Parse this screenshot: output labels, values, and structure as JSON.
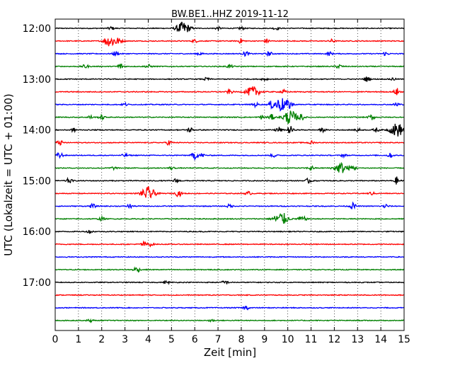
{
  "chart_data": {
    "type": "line",
    "title": "BW.BE1..HHZ 2019-11-12",
    "xlabel": "Zeit  [min]",
    "ylabel": "UTC (Lokalzeit = UTC + 01:00)",
    "xlim": [
      0,
      15
    ],
    "x_ticks": [
      "0",
      "1",
      "2",
      "3",
      "4",
      "5",
      "6",
      "7",
      "8",
      "9",
      "10",
      "11",
      "12",
      "13",
      "14",
      "15"
    ],
    "y_tick_labels": [
      "12:00",
      "13:00",
      "14:00",
      "15:00",
      "16:00",
      "17:00"
    ],
    "grid": "vertical dotted",
    "trace_colors": [
      "#000000",
      "#ff0000",
      "#0000ff",
      "#008000"
    ],
    "series": [
      {
        "start": "12:00",
        "events": [
          [
            2.4,
            0.25
          ],
          [
            5.5,
            0.9
          ],
          [
            7.0,
            0.2
          ],
          [
            8.0,
            0.2
          ],
          [
            9.5,
            0.2
          ]
        ]
      },
      {
        "start": "12:15",
        "events": [
          [
            2.2,
            0.45
          ],
          [
            2.5,
            0.8
          ],
          [
            6.0,
            0.2
          ],
          [
            8.0,
            0.35
          ],
          [
            9.1,
            0.3
          ],
          [
            11.9,
            0.25
          ]
        ]
      },
      {
        "start": "12:30",
        "events": [
          [
            2.6,
            0.3
          ],
          [
            6.2,
            0.2
          ],
          [
            8.2,
            0.35
          ],
          [
            9.2,
            0.3
          ],
          [
            11.8,
            0.25
          ],
          [
            14.2,
            0.25
          ]
        ]
      },
      {
        "start": "12:45",
        "events": [
          [
            1.3,
            0.3
          ],
          [
            2.8,
            0.45
          ],
          [
            4.0,
            0.25
          ],
          [
            7.5,
            0.25
          ],
          [
            12.2,
            0.3
          ]
        ]
      },
      {
        "start": "13:00",
        "events": [
          [
            6.5,
            0.2
          ],
          [
            9.0,
            0.2
          ],
          [
            13.4,
            0.35
          ],
          [
            14.5,
            0.2
          ]
        ]
      },
      {
        "start": "13:15",
        "events": [
          [
            7.5,
            0.3
          ],
          [
            8.5,
            0.75
          ],
          [
            9.8,
            0.3
          ],
          [
            14.7,
            0.5
          ]
        ]
      },
      {
        "start": "13:30",
        "events": [
          [
            3.0,
            0.2
          ],
          [
            8.6,
            0.3
          ],
          [
            9.3,
            0.4
          ],
          [
            9.7,
            1.0
          ],
          [
            10.1,
            0.5
          ],
          [
            14.7,
            0.35
          ]
        ]
      },
      {
        "start": "13:45",
        "events": [
          [
            1.5,
            0.25
          ],
          [
            2.0,
            0.3
          ],
          [
            8.9,
            0.3
          ],
          [
            9.3,
            0.4
          ],
          [
            10.1,
            1.0
          ],
          [
            10.6,
            0.4
          ],
          [
            13.6,
            0.4
          ]
        ]
      },
      {
        "start": "14:00",
        "events": [
          [
            0.8,
            0.25
          ],
          [
            5.8,
            0.35
          ],
          [
            9.6,
            0.45
          ],
          [
            10.1,
            0.55
          ],
          [
            11.5,
            0.25
          ],
          [
            13.0,
            0.25
          ],
          [
            13.8,
            0.3
          ],
          [
            14.7,
            1.0
          ]
        ]
      },
      {
        "start": "14:15",
        "events": [
          [
            0.2,
            0.35
          ],
          [
            4.9,
            0.35
          ],
          [
            11.0,
            0.25
          ]
        ]
      },
      {
        "start": "14:30",
        "events": [
          [
            0.2,
            0.45
          ],
          [
            3.0,
            0.25
          ],
          [
            6.0,
            0.55
          ],
          [
            6.3,
            0.3
          ],
          [
            9.4,
            0.25
          ],
          [
            12.4,
            0.2
          ],
          [
            14.4,
            0.3
          ]
        ]
      },
      {
        "start": "14:45",
        "events": [
          [
            2.5,
            0.2
          ],
          [
            5.0,
            0.2
          ],
          [
            11.0,
            0.3
          ],
          [
            12.3,
            0.75
          ],
          [
            12.8,
            0.35
          ]
        ]
      },
      {
        "start": "15:00",
        "events": [
          [
            0.6,
            0.35
          ],
          [
            5.2,
            0.3
          ],
          [
            10.9,
            0.35
          ],
          [
            14.7,
            0.55
          ]
        ]
      },
      {
        "start": "15:15",
        "events": [
          [
            4.0,
            0.9
          ],
          [
            5.3,
            0.45
          ],
          [
            8.3,
            0.25
          ],
          [
            13.6,
            0.2
          ]
        ]
      },
      {
        "start": "15:30",
        "events": [
          [
            1.6,
            0.3
          ],
          [
            3.2,
            0.3
          ],
          [
            7.5,
            0.25
          ],
          [
            12.8,
            0.45
          ],
          [
            14.2,
            0.3
          ]
        ]
      },
      {
        "start": "15:45",
        "events": [
          [
            2.0,
            0.25
          ],
          [
            9.7,
            1.0
          ],
          [
            10.5,
            0.25
          ],
          [
            10.7,
            0.25
          ]
        ]
      },
      {
        "start": "16:00",
        "events": [
          [
            1.5,
            0.25
          ]
        ]
      },
      {
        "start": "16:15",
        "events": [
          [
            3.8,
            0.35
          ],
          [
            4.1,
            0.25
          ]
        ]
      },
      {
        "start": "16:30",
        "events": []
      },
      {
        "start": "16:45",
        "events": [
          [
            3.5,
            0.45
          ]
        ]
      },
      {
        "start": "17:00",
        "events": [
          [
            4.8,
            0.2
          ],
          [
            7.3,
            0.35
          ]
        ]
      },
      {
        "start": "17:15",
        "events": []
      },
      {
        "start": "17:30",
        "events": [
          [
            8.2,
            0.3
          ]
        ]
      },
      {
        "start": "17:45",
        "events": [
          [
            1.5,
            0.2
          ],
          [
            6.7,
            0.2
          ]
        ]
      }
    ]
  }
}
